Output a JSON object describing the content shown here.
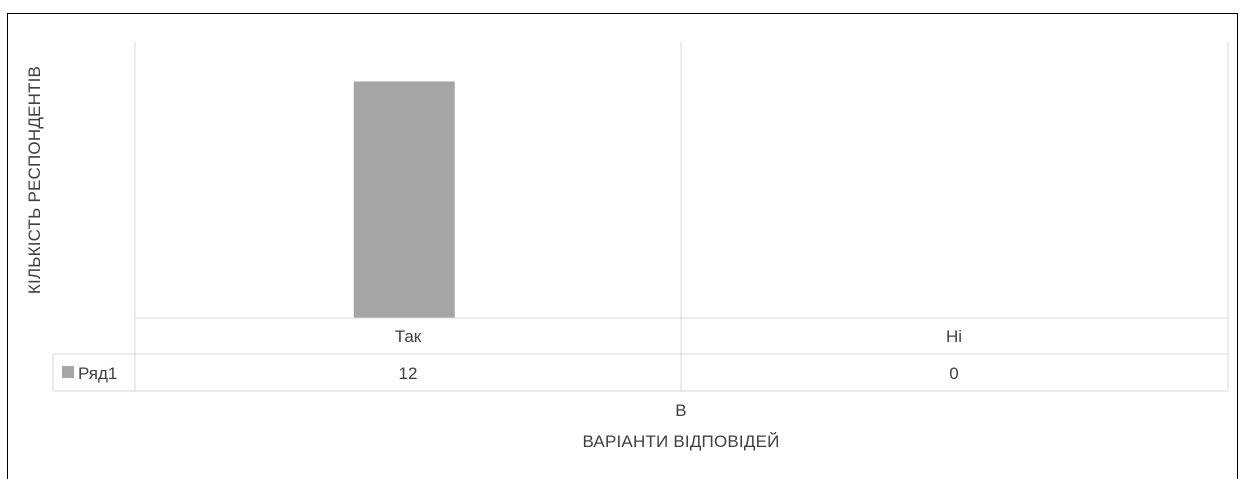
{
  "chart_data": {
    "type": "bar",
    "title": "",
    "categories": [
      "Так",
      "Ні"
    ],
    "series": [
      {
        "name": "Ряд1",
        "values": [
          12,
          0
        ],
        "color": "#a5a5a5"
      }
    ],
    "ylabel": "КІЛЬКІСТЬ РЕСПОНДЕНТІВ",
    "xlabel_line1": "В",
    "xlabel_line2": "ВАРІАНТИ ВІДПОВІДЕЙ",
    "ylim": [
      0,
      14
    ],
    "grid": false,
    "legend": "data-table",
    "data_table": true
  }
}
